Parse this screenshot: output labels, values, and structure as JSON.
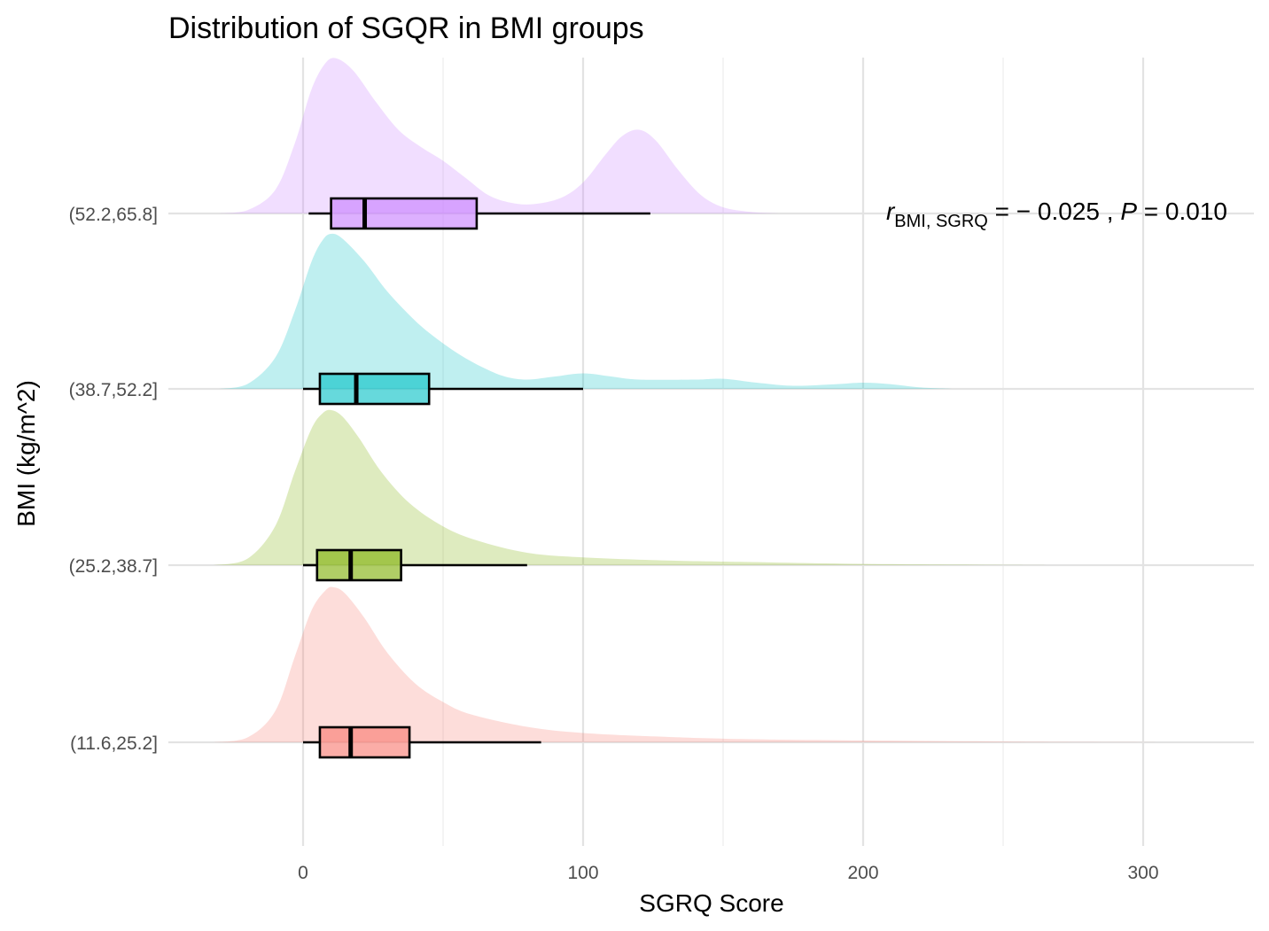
{
  "chart_data": {
    "type": "ridgeline-boxplot",
    "title": "Distribution of SGQR in BMI groups",
    "xlabel": "SGRQ Score",
    "ylabel": "BMI (kg/m^2)",
    "xlim": [
      -48,
      341
    ],
    "x_ticks": [
      0,
      100,
      200,
      300
    ],
    "x_minor_ticks": [
      50,
      150,
      250
    ],
    "grid": true,
    "legend": "none",
    "annotation": {
      "r_symbol": "r",
      "r_subscript": "BMI, SGRQ",
      "r_text": " = − 0.025 , ",
      "p_symbol": "P",
      "p_text": " = 0.010"
    },
    "groups": [
      {
        "name": "(11.6,25.2]",
        "color": "#F8766D",
        "box": {
          "whisker_low": 0,
          "q1": 6,
          "median": 17,
          "q3": 38,
          "whisker_high": 85
        },
        "density": [
          [
            -32,
            0
          ],
          [
            -20,
            0.03
          ],
          [
            -10,
            0.2
          ],
          [
            -3,
            0.55
          ],
          [
            3,
            0.85
          ],
          [
            8,
            0.98
          ],
          [
            11,
            1.0
          ],
          [
            15,
            0.96
          ],
          [
            22,
            0.8
          ],
          [
            30,
            0.58
          ],
          [
            40,
            0.38
          ],
          [
            50,
            0.26
          ],
          [
            60,
            0.18
          ],
          [
            80,
            0.1
          ],
          [
            100,
            0.06
          ],
          [
            130,
            0.035
          ],
          [
            160,
            0.02
          ],
          [
            200,
            0.012
          ],
          [
            250,
            0.005
          ],
          [
            300,
            0.001
          ],
          [
            310,
            0
          ]
        ]
      },
      {
        "name": "(25.2,38.7]",
        "color": "#7CAE00",
        "box": {
          "whisker_low": 0,
          "q1": 5,
          "median": 17,
          "q3": 35,
          "whisker_high": 80
        },
        "density": [
          [
            -32,
            0
          ],
          [
            -20,
            0.04
          ],
          [
            -10,
            0.25
          ],
          [
            -3,
            0.6
          ],
          [
            3,
            0.88
          ],
          [
            7,
            0.98
          ],
          [
            10,
            1.0
          ],
          [
            14,
            0.96
          ],
          [
            20,
            0.82
          ],
          [
            28,
            0.6
          ],
          [
            38,
            0.4
          ],
          [
            50,
            0.25
          ],
          [
            62,
            0.16
          ],
          [
            80,
            0.08
          ],
          [
            100,
            0.05
          ],
          [
            130,
            0.03
          ],
          [
            160,
            0.02
          ],
          [
            200,
            0.008
          ],
          [
            240,
            0.003
          ],
          [
            270,
            0
          ]
        ]
      },
      {
        "name": "(38.7,52.2]",
        "color": "#00BFC4",
        "box": {
          "whisker_low": 0,
          "q1": 6,
          "median": 19,
          "q3": 45,
          "whisker_high": 100
        },
        "density": [
          [
            -30,
            0
          ],
          [
            -20,
            0.03
          ],
          [
            -10,
            0.2
          ],
          [
            -3,
            0.5
          ],
          [
            3,
            0.82
          ],
          [
            7,
            0.96
          ],
          [
            10,
            1.0
          ],
          [
            14,
            0.97
          ],
          [
            22,
            0.82
          ],
          [
            30,
            0.63
          ],
          [
            40,
            0.44
          ],
          [
            48,
            0.32
          ],
          [
            56,
            0.22
          ],
          [
            64,
            0.14
          ],
          [
            72,
            0.08
          ],
          [
            80,
            0.06
          ],
          [
            90,
            0.08
          ],
          [
            100,
            0.1
          ],
          [
            110,
            0.08
          ],
          [
            120,
            0.06
          ],
          [
            140,
            0.06
          ],
          [
            150,
            0.065
          ],
          [
            162,
            0.04
          ],
          [
            175,
            0.02
          ],
          [
            190,
            0.03
          ],
          [
            200,
            0.04
          ],
          [
            210,
            0.03
          ],
          [
            220,
            0.01
          ],
          [
            232,
            0
          ]
        ]
      },
      {
        "name": "(52.2,65.8]",
        "color": "#C77CFF",
        "box": {
          "whisker_low": 2,
          "q1": 10,
          "median": 22,
          "q3": 62,
          "whisker_high": 124
        },
        "density": [
          [
            -30,
            0
          ],
          [
            -20,
            0.02
          ],
          [
            -10,
            0.15
          ],
          [
            -3,
            0.45
          ],
          [
            3,
            0.8
          ],
          [
            8,
            0.97
          ],
          [
            12,
            1.0
          ],
          [
            18,
            0.92
          ],
          [
            26,
            0.72
          ],
          [
            34,
            0.54
          ],
          [
            42,
            0.43
          ],
          [
            50,
            0.34
          ],
          [
            58,
            0.23
          ],
          [
            66,
            0.12
          ],
          [
            74,
            0.07
          ],
          [
            82,
            0.06
          ],
          [
            92,
            0.1
          ],
          [
            100,
            0.2
          ],
          [
            108,
            0.38
          ],
          [
            114,
            0.5
          ],
          [
            120,
            0.54
          ],
          [
            126,
            0.47
          ],
          [
            134,
            0.28
          ],
          [
            142,
            0.12
          ],
          [
            150,
            0.04
          ],
          [
            160,
            0.01
          ],
          [
            170,
            0
          ]
        ]
      }
    ]
  }
}
